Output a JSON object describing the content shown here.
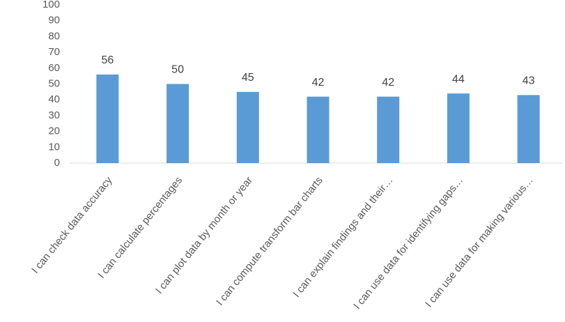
{
  "chart_data": {
    "type": "bar",
    "categories": [
      "I can check data accuracy",
      "I can calculate percentages",
      "I can plot data by month or year",
      "I can compute transform bar charts",
      "I can explain findings and their…",
      "I can use data for identifying gaps…",
      "I can use data for making various…"
    ],
    "values": [
      56,
      50,
      45,
      42,
      42,
      44,
      43
    ],
    "color": "#5b9bd5",
    "ylim": [
      0,
      100
    ],
    "yticks": [
      0,
      10,
      20,
      30,
      40,
      50,
      60,
      70,
      80,
      90,
      100
    ],
    "grid": false,
    "data_labels": true
  }
}
